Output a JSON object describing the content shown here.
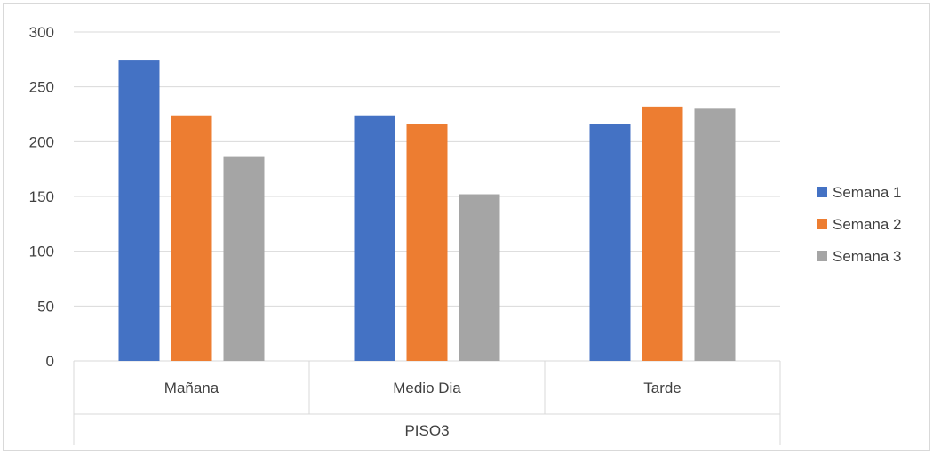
{
  "chart_data": {
    "type": "bar",
    "title": "",
    "xlabel": "",
    "ylabel": "",
    "group_label": "PISO3",
    "categories": [
      "Mañana",
      "Medio Dia",
      "Tarde"
    ],
    "series": [
      {
        "name": "Semana 1",
        "color": "#4472c4",
        "values": [
          274,
          224,
          216
        ]
      },
      {
        "name": "Semana 2",
        "color": "#ed7d31",
        "values": [
          224,
          216,
          232
        ]
      },
      {
        "name": "Semana 3",
        "color": "#a5a5a5",
        "values": [
          186,
          152,
          230
        ]
      }
    ],
    "ylim": [
      0,
      300
    ],
    "yticks": [
      "0",
      "50",
      "100",
      "150",
      "200",
      "250",
      "300"
    ],
    "grid": true,
    "legend_position": "right"
  }
}
